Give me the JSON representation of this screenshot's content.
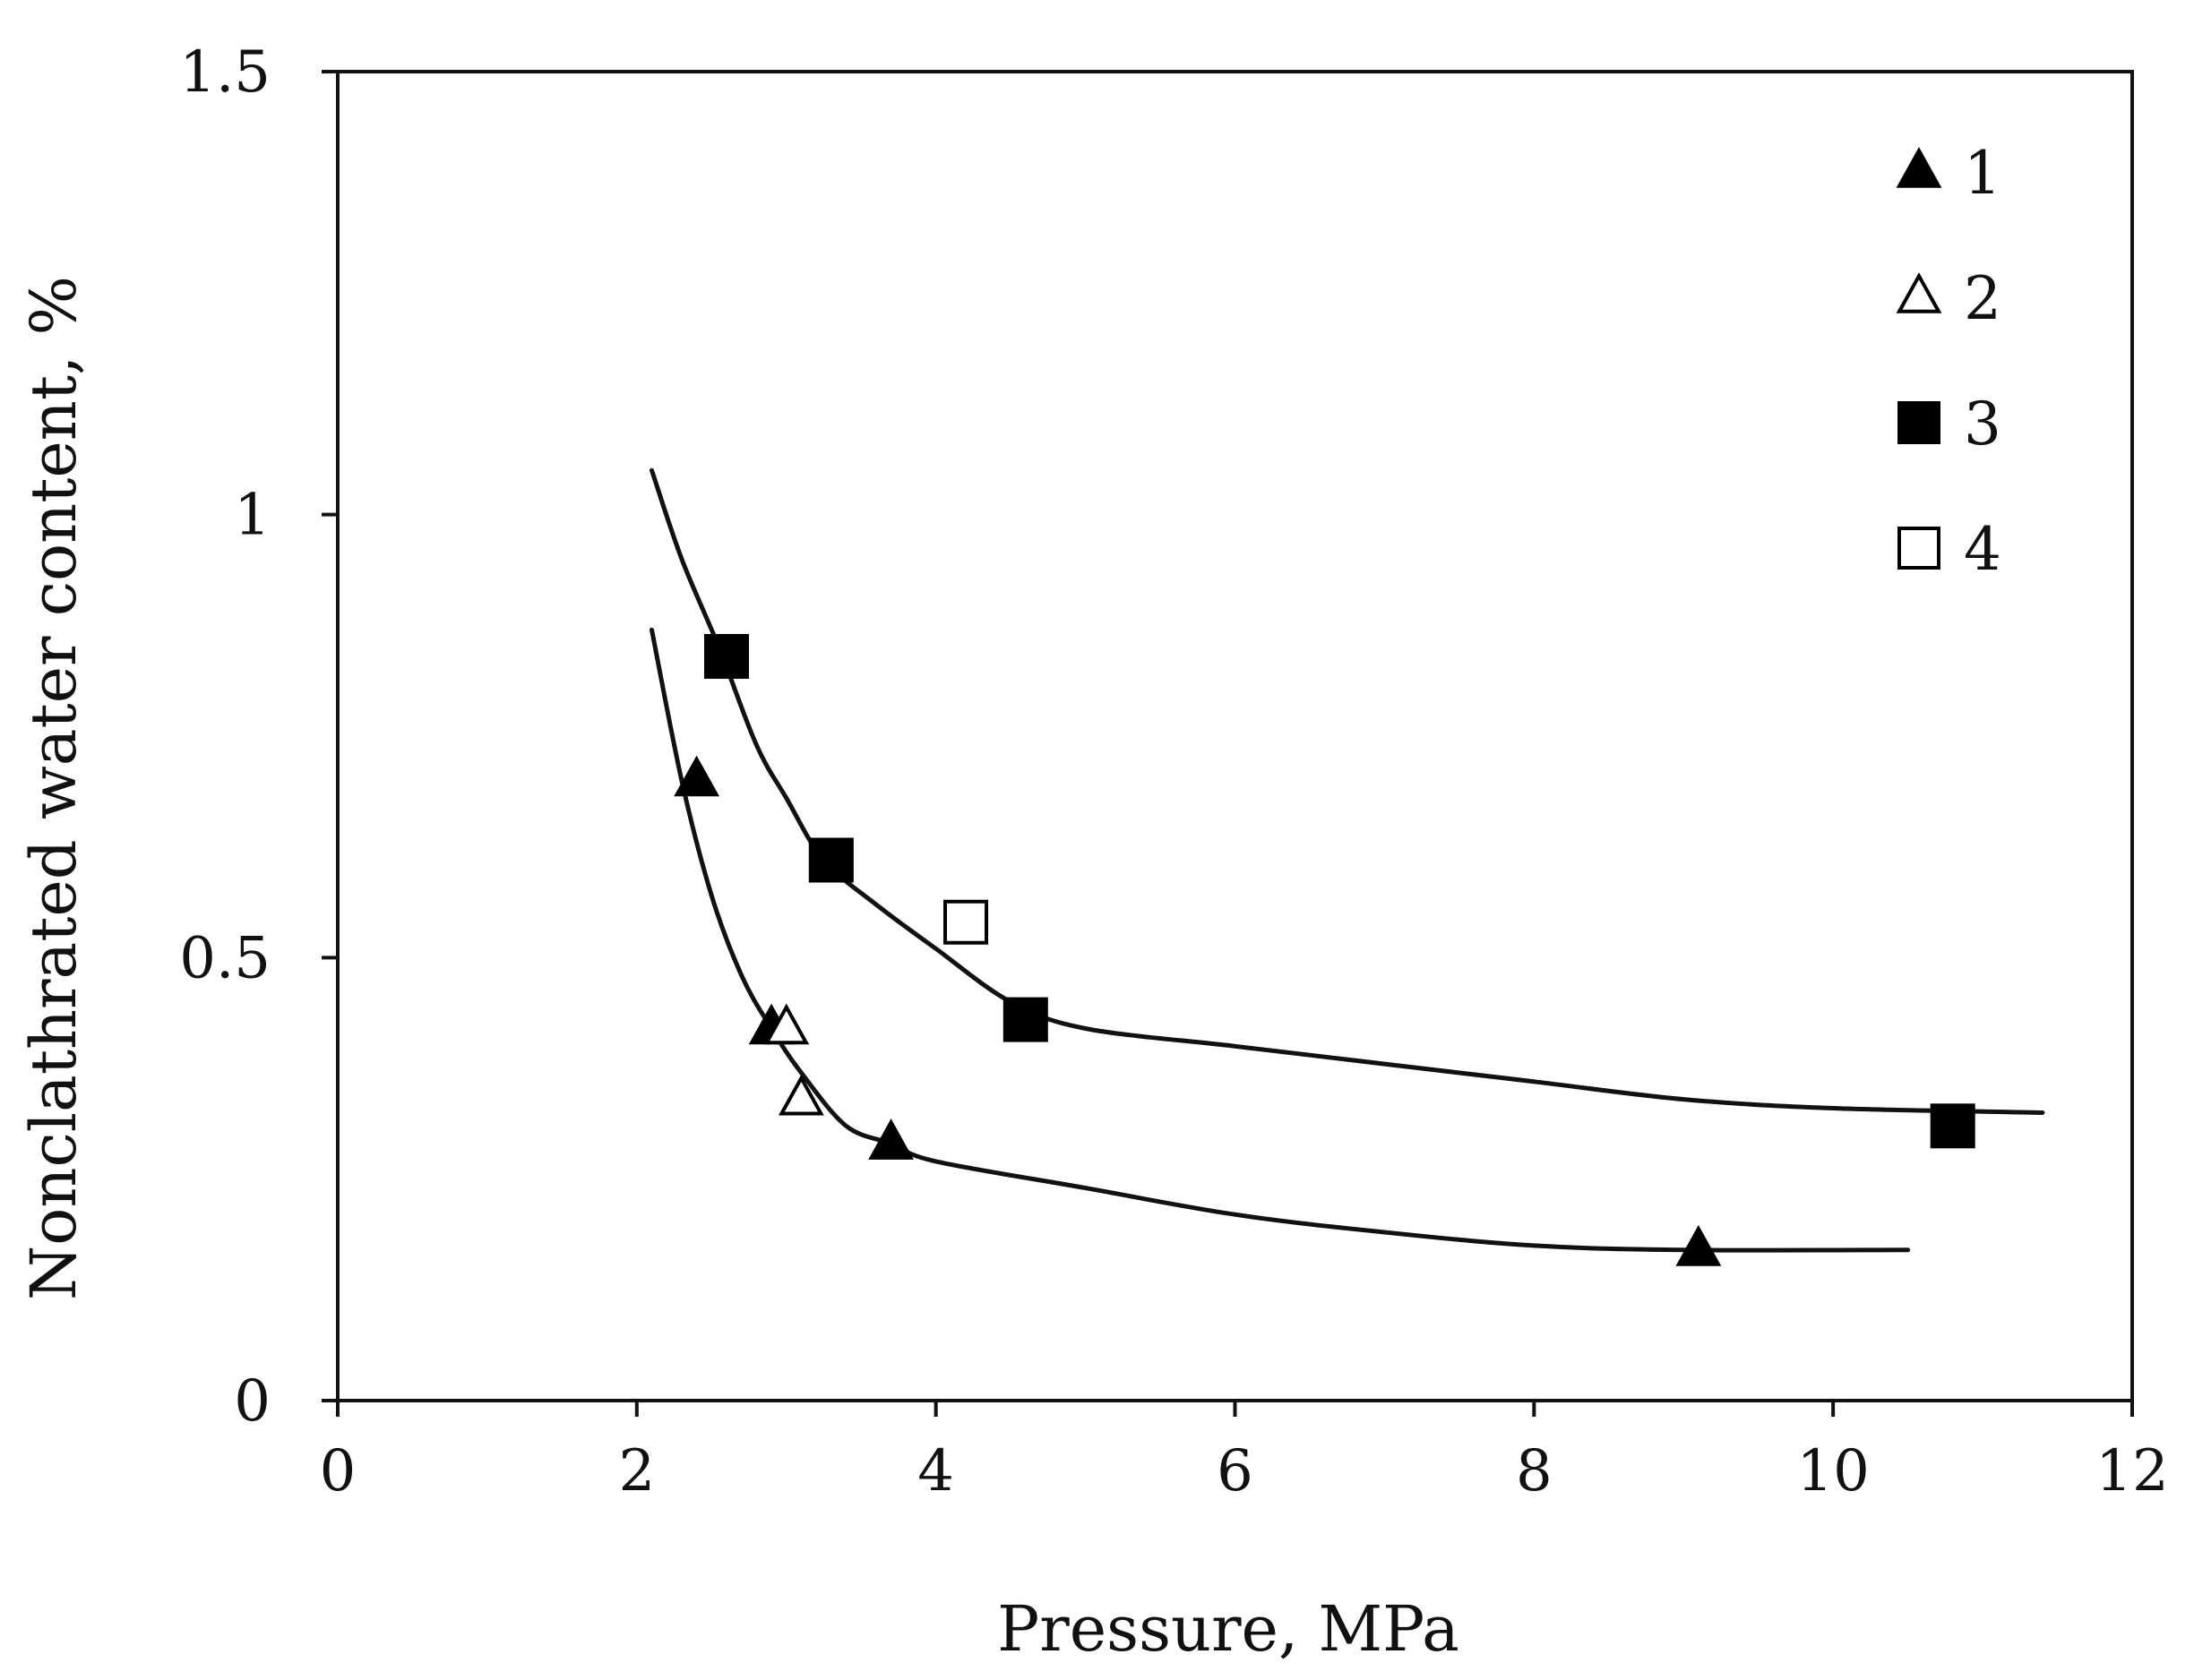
{
  "chart_data": {
    "type": "scatter",
    "title": "",
    "xlabel": "Pressure, MPa",
    "ylabel": "Nonclathrated water content, %",
    "xlim": [
      0,
      12
    ],
    "ylim": [
      0,
      1.5
    ],
    "xticks": [
      0,
      2,
      4,
      6,
      8,
      10,
      12
    ],
    "xtick_labels": [
      "0",
      "2",
      "4",
      "6",
      "8",
      "10",
      "12"
    ],
    "yticks": [
      0,
      0.5,
      1,
      1.5
    ],
    "ytick_labels": [
      "0",
      "0.5",
      "1",
      "1.5"
    ],
    "grid": false,
    "legend_position": "top-right",
    "series": [
      {
        "name": "1",
        "marker": "triangle-filled",
        "points": [
          [
            2.4,
            0.7
          ],
          [
            2.9,
            0.42
          ],
          [
            3.7,
            0.29
          ],
          [
            9.1,
            0.17
          ]
        ]
      },
      {
        "name": "2",
        "marker": "triangle-open",
        "points": [
          [
            3.0,
            0.42
          ],
          [
            3.1,
            0.34
          ]
        ]
      },
      {
        "name": "3",
        "marker": "square-filled",
        "points": [
          [
            2.6,
            0.84
          ],
          [
            3.3,
            0.61
          ],
          [
            4.6,
            0.43
          ],
          [
            10.8,
            0.31
          ]
        ]
      },
      {
        "name": "4",
        "marker": "square-open",
        "points": [
          [
            4.2,
            0.54
          ]
        ]
      }
    ],
    "fit_curves": [
      {
        "name": "lower-curve",
        "points": [
          [
            2.1,
            0.87
          ],
          [
            2.3,
            0.7
          ],
          [
            2.5,
            0.57
          ],
          [
            2.7,
            0.48
          ],
          [
            2.9,
            0.42
          ],
          [
            3.1,
            0.37
          ],
          [
            3.4,
            0.31
          ],
          [
            3.7,
            0.29
          ],
          [
            4.0,
            0.27
          ],
          [
            5.0,
            0.24
          ],
          [
            6.0,
            0.21
          ],
          [
            7.0,
            0.19
          ],
          [
            8.0,
            0.175
          ],
          [
            9.0,
            0.17
          ],
          [
            10.5,
            0.17
          ]
        ]
      },
      {
        "name": "upper-curve",
        "points": [
          [
            2.1,
            1.05
          ],
          [
            2.3,
            0.95
          ],
          [
            2.55,
            0.85
          ],
          [
            2.8,
            0.74
          ],
          [
            3.0,
            0.68
          ],
          [
            3.25,
            0.61
          ],
          [
            3.6,
            0.56
          ],
          [
            4.0,
            0.51
          ],
          [
            4.5,
            0.45
          ],
          [
            5.0,
            0.42
          ],
          [
            6.0,
            0.4
          ],
          [
            7.0,
            0.38
          ],
          [
            8.0,
            0.36
          ],
          [
            9.0,
            0.34
          ],
          [
            10.0,
            0.33
          ],
          [
            11.4,
            0.325
          ]
        ]
      }
    ]
  }
}
